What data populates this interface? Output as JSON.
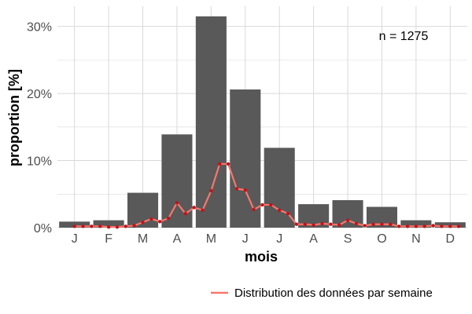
{
  "chart_data": {
    "type": "bar",
    "xlabel": "mois",
    "ylabel": "proportion [%]",
    "categories": [
      "J",
      "F",
      "M",
      "A",
      "M",
      "J",
      "J",
      "A",
      "S",
      "O",
      "N",
      "D"
    ],
    "ylim": [
      0,
      33
    ],
    "yticks": [
      0,
      10,
      20,
      30
    ],
    "ytick_labels": [
      "0%",
      "10%",
      "20%",
      "30%"
    ],
    "grid": true,
    "annotation": "n = 1275",
    "series": [
      {
        "type": "bar",
        "values": [
          0.9,
          1.1,
          5.2,
          13.9,
          31.5,
          20.6,
          11.9,
          3.5,
          4.1,
          3.1,
          1.1,
          0.8
        ]
      },
      {
        "type": "line",
        "name": "Distribution des données par semaine",
        "x": [
          1,
          1.25,
          1.5,
          1.75,
          2,
          2.25,
          2.5,
          2.75,
          3,
          3.25,
          3.5,
          3.75,
          4,
          4.25,
          4.5,
          4.75,
          5,
          5.25,
          5.5,
          5.75,
          6,
          6.25,
          6.5,
          6.75,
          7,
          7.25,
          7.5,
          7.75,
          8,
          8.25,
          8.5,
          8.75,
          9,
          9.25,
          9.5,
          9.75,
          10,
          10.25,
          10.5,
          10.75,
          11,
          11.25,
          11.5,
          11.75,
          12,
          12.25
        ],
        "values": [
          0.2,
          0.2,
          0.2,
          0.2,
          0.1,
          0.1,
          0.2,
          0.3,
          0.8,
          1.3,
          0.9,
          1.4,
          3.7,
          2.1,
          3.0,
          2.6,
          5.5,
          9.5,
          9.5,
          5.8,
          5.6,
          2.7,
          3.4,
          3.4,
          2.6,
          2.1,
          0.5,
          0.5,
          0.4,
          0.6,
          0.5,
          0.4,
          1.1,
          0.6,
          0.3,
          0.5,
          0.5,
          0.5,
          0.2,
          0.2,
          0.2,
          0.2,
          0.3,
          0.2,
          0.2,
          0.2
        ]
      }
    ],
    "legend": {
      "position": "bottom-right"
    },
    "colors": {
      "bar": "#595959",
      "line": "#f8766d",
      "grid": "#d9d9d9",
      "background": "#ffffff"
    }
  }
}
